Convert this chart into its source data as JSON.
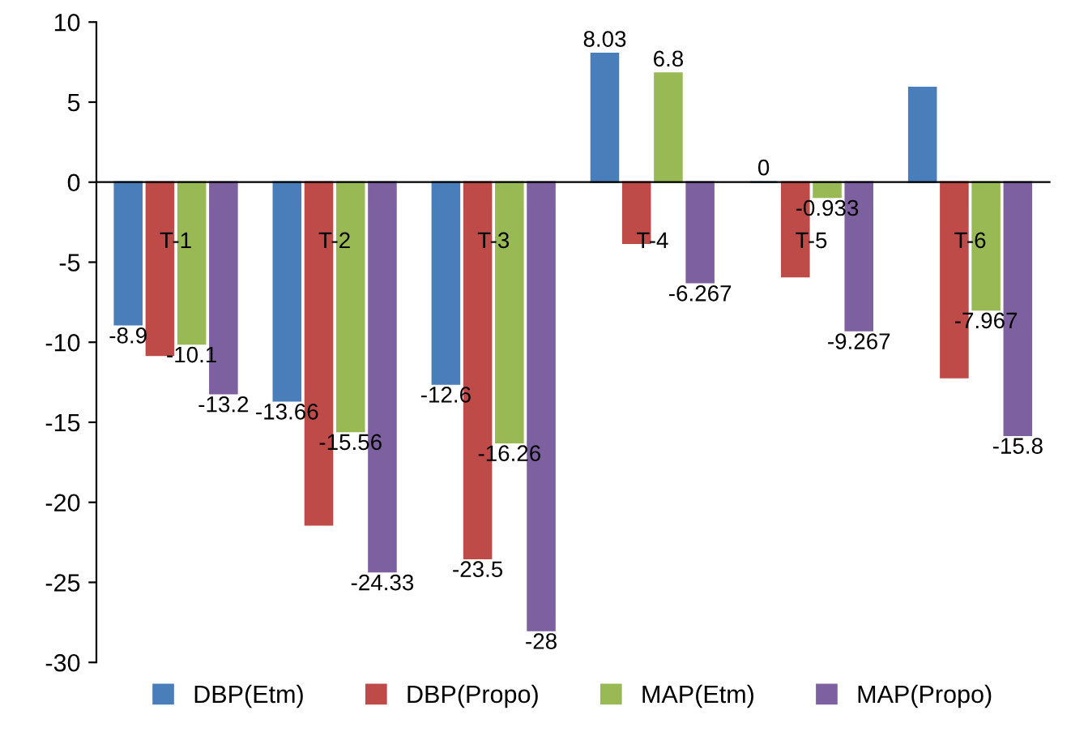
{
  "chart_data": {
    "type": "bar",
    "categories": [
      "T-1",
      "T-2",
      "T-3",
      "T-4",
      "T-5",
      "T-6"
    ],
    "series": [
      {
        "name": "DBP(Etm)",
        "color": "#4a7ebb",
        "values": [
          -8.9,
          -13.66,
          -12.6,
          8.03,
          0,
          5.9
        ],
        "value_labels": [
          "-8.9",
          "-13.66",
          "-12.6",
          "8.03",
          "0",
          null
        ]
      },
      {
        "name": "DBP(Propo)",
        "color": "#be4b48",
        "values": [
          -10.8,
          -21.4,
          -23.5,
          -3.8,
          -5.9,
          -12.2
        ],
        "value_labels": [
          null,
          null,
          "-23.5",
          null,
          null,
          null
        ]
      },
      {
        "name": "MAP(Etm)",
        "color": "#98b954",
        "values": [
          -10.1,
          -15.56,
          -16.26,
          6.8,
          -0.933,
          -7.967
        ],
        "value_labels": [
          "-10.1",
          "-15.56",
          "-16.26",
          "6.8",
          "-0.933",
          "-7.967"
        ]
      },
      {
        "name": "MAP(Propo)",
        "color": "#7d60a0",
        "values": [
          -13.2,
          -24.33,
          -28,
          -6.267,
          -9.267,
          -15.8
        ],
        "value_labels": [
          "-13.2",
          "-24.33",
          "-28",
          "-6.267",
          "-9.267",
          "-15.8"
        ]
      }
    ],
    "ylim": [
      -30,
      10
    ],
    "yticks": [
      -30,
      -25,
      -20,
      -15,
      -10,
      -5,
      0,
      5,
      10
    ],
    "grid": false,
    "legend": "bottom"
  }
}
